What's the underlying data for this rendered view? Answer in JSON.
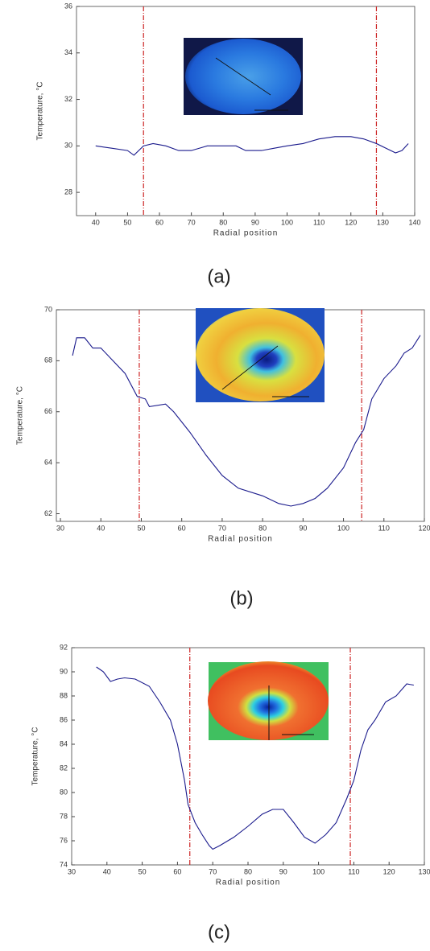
{
  "chart_data": [
    {
      "type": "line",
      "panel_label": "(a)",
      "xlabel": "Radial position",
      "ylabel": "Temperature, °C",
      "xlim": [
        34,
        140
      ],
      "ylim": [
        27,
        36
      ],
      "xticks": [
        40,
        50,
        60,
        70,
        80,
        90,
        100,
        110,
        120,
        130,
        140
      ],
      "yticks": [
        28,
        30,
        32,
        34,
        36
      ],
      "vlines": [
        55,
        128
      ],
      "vline_color": "#cc2222",
      "series": [
        {
          "color": "#1a1a8c",
          "x": [
            40,
            45,
            50,
            52,
            55,
            58,
            62,
            66,
            70,
            75,
            80,
            84,
            87,
            92,
            96,
            100,
            105,
            110,
            115,
            120,
            124,
            128,
            131,
            134,
            136,
            138
          ],
          "values": [
            30.0,
            29.9,
            29.8,
            29.6,
            30.0,
            30.1,
            30.0,
            29.8,
            29.8,
            30.0,
            30.0,
            30.0,
            29.8,
            29.8,
            29.9,
            30.0,
            30.1,
            30.3,
            30.4,
            30.4,
            30.3,
            30.1,
            29.9,
            29.7,
            29.8,
            30.1
          ]
        }
      ]
    },
    {
      "type": "line",
      "panel_label": "(b)",
      "xlabel": "Radial position",
      "ylabel": "Temperature, °C",
      "xlim": [
        29,
        120
      ],
      "ylim": [
        61.7,
        70
      ],
      "xticks": [
        30,
        40,
        50,
        60,
        70,
        80,
        90,
        100,
        110,
        120
      ],
      "yticks": [
        62,
        64,
        66,
        68,
        70
      ],
      "vlines": [
        49.5,
        104.5
      ],
      "vline_color": "#cc2222",
      "series": [
        {
          "color": "#1a1a8c",
          "x": [
            33,
            34,
            36,
            38,
            40,
            43,
            46,
            49,
            51,
            52,
            56,
            58,
            62,
            66,
            70,
            74,
            80,
            84,
            87,
            90,
            93,
            96,
            100,
            103,
            105,
            107,
            110,
            113,
            115,
            117,
            119
          ],
          "values": [
            68.2,
            68.9,
            68.9,
            68.5,
            68.5,
            68.0,
            67.5,
            66.6,
            66.5,
            66.2,
            66.3,
            66.0,
            65.2,
            64.3,
            63.5,
            63.0,
            62.7,
            62.4,
            62.3,
            62.4,
            62.6,
            63.0,
            63.8,
            64.8,
            65.3,
            66.5,
            67.3,
            67.8,
            68.3,
            68.5,
            69.0
          ]
        }
      ]
    },
    {
      "type": "line",
      "panel_label": "(c)",
      "xlabel": "Radial position",
      "ylabel": "Temperature, °C",
      "xlim": [
        30,
        130
      ],
      "ylim": [
        74,
        92
      ],
      "xticks": [
        30,
        40,
        50,
        60,
        70,
        80,
        90,
        100,
        110,
        120,
        130
      ],
      "yticks": [
        74,
        76,
        78,
        80,
        82,
        84,
        86,
        88,
        90,
        92
      ],
      "vlines": [
        63.5,
        109
      ],
      "vline_color": "#cc2222",
      "series": [
        {
          "color": "#1a1a8c",
          "x": [
            37,
            39,
            41,
            43,
            45,
            48,
            52,
            55,
            58,
            60,
            62,
            63,
            65,
            67,
            69,
            70,
            72,
            76,
            80,
            84,
            87,
            90,
            93,
            96,
            99,
            102,
            105,
            108,
            110,
            112,
            114,
            116,
            119,
            122,
            125,
            127
          ],
          "values": [
            90.4,
            90.0,
            89.2,
            89.4,
            89.5,
            89.4,
            88.8,
            87.5,
            86.0,
            84.0,
            81.0,
            79.0,
            77.5,
            76.5,
            75.6,
            75.3,
            75.6,
            76.3,
            77.2,
            78.2,
            78.6,
            78.6,
            77.5,
            76.3,
            75.8,
            76.5,
            77.5,
            79.5,
            81.0,
            83.5,
            85.2,
            86.0,
            87.5,
            88.0,
            89.0,
            88.9
          ]
        }
      ]
    }
  ]
}
